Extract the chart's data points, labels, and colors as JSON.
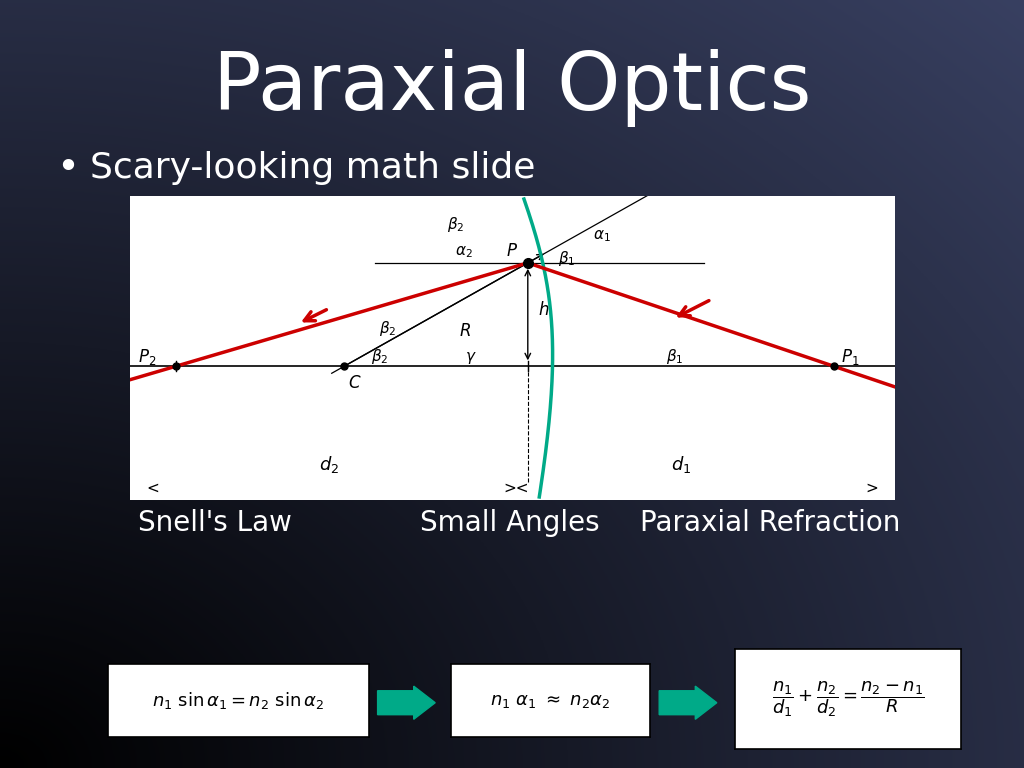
{
  "title": "Paraxial Optics",
  "bullet": "Scary-looking math slide",
  "label_snell": "Snell's Law",
  "label_small": "Small Angles",
  "label_paraxial": "Paraxial Refraction",
  "teal_color": "#00aa88",
  "red_color": "#cc0000",
  "title_fontsize": 58,
  "bullet_fontsize": 26,
  "label_fontsize": 20
}
